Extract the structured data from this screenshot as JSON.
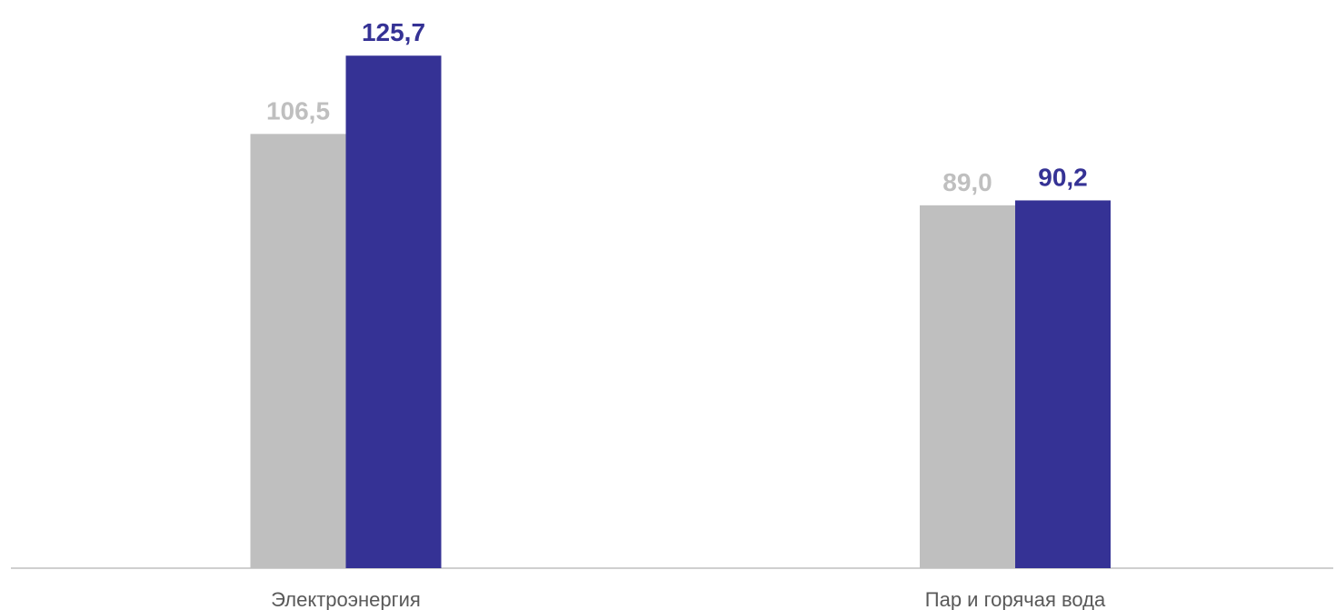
{
  "chart_data": {
    "type": "bar",
    "categories": [
      "Электроэнергия",
      "Пар и горячая вода"
    ],
    "series": [
      {
        "values": [
          106.5,
          89.0
        ],
        "labels": [
          "106,5",
          "89,0"
        ],
        "color": "#bfbfbf"
      },
      {
        "values": [
          125.7,
          90.2
        ],
        "labels": [
          "125,7",
          "90,2"
        ],
        "color": "#353295"
      }
    ],
    "ylim": [
      0,
      135
    ],
    "grid": false,
    "legend": "none",
    "axis_color": "#bfbfbf",
    "category_label_color": "#595959"
  }
}
